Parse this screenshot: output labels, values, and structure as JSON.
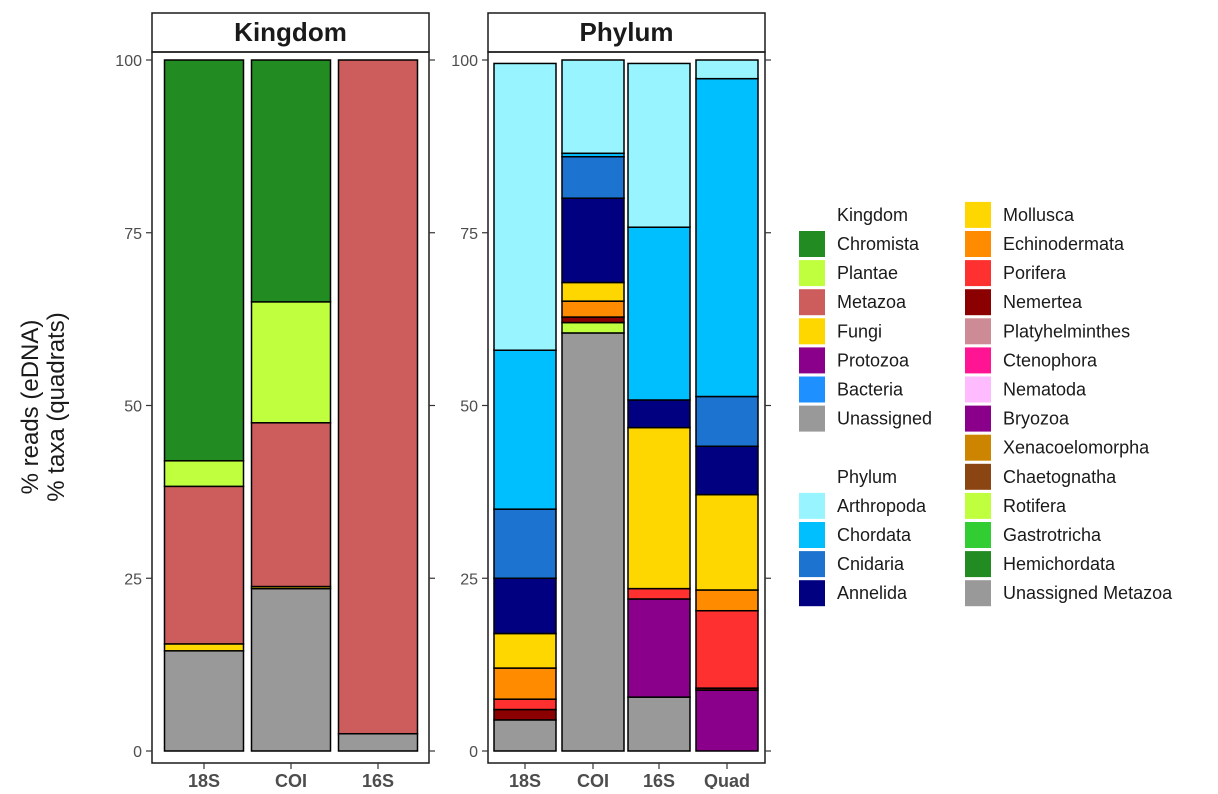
{
  "y_axis": {
    "title_line1": "% reads (eDNA)",
    "title_line2": "% taxa (quadrats)"
  },
  "colors": {
    "Chromista": "#228B22",
    "Plantae": "#C0FF3E",
    "Metazoa": "#CD5C5C",
    "Fungi": "#FFD700",
    "Protozoa": "#8B008B",
    "Bacteria": "#1E90FF",
    "Unassigned": "#999999",
    "Arthropoda": "#98F5FF",
    "Chordata": "#00BFFF",
    "Cnidaria": "#1C74D0",
    "Annelida": "#000080",
    "Mollusca": "#FFD700",
    "Echinodermata": "#FF8C00",
    "Porifera": "#FF3030",
    "Nemertea": "#8B0000",
    "Platyhelminthes": "#CD8C95",
    "Ctenophora": "#FF1493",
    "Nematoda": "#FFBBFF",
    "Bryozoa": "#8B008B",
    "Xenacoelomorpha": "#CD8500",
    "Chaetognatha": "#8B4513",
    "Rotifera": "#C0FF3E",
    "Gastrotricha": "#32CD32",
    "Hemichordata": "#228B22",
    "Unassigned Metazoa": "#999999"
  },
  "legend": {
    "kingdom_title": "Kingdom",
    "kingdom_items": [
      "Chromista",
      "Plantae",
      "Metazoa",
      "Fungi",
      "Protozoa",
      "Bacteria",
      "Unassigned"
    ],
    "phylum_title": "Phylum",
    "phylum_items_col1": [
      "Arthropoda",
      "Chordata",
      "Cnidaria",
      "Annelida"
    ],
    "phylum_items_col2": [
      "Mollusca",
      "Echinodermata",
      "Porifera",
      "Nemertea",
      "Platyhelminthes",
      "Ctenophora",
      "Nematoda",
      "Bryozoa",
      "Xenacoelomorpha",
      "Chaetognatha",
      "Rotifera",
      "Gastrotricha",
      "Hemichordata",
      "Unassigned Metazoa"
    ]
  },
  "chart_data": [
    {
      "type": "bar",
      "stacked": true,
      "facet": "Kingdom",
      "categories": [
        "18S",
        "COI",
        "16S"
      ],
      "ylim": [
        0,
        100
      ],
      "yticks": [
        0,
        25,
        50,
        75,
        100
      ],
      "series": [
        {
          "name": "Unassigned",
          "values": [
            14.5,
            23.5,
            2.5
          ]
        },
        {
          "name": "Bacteria",
          "values": [
            0,
            0,
            0
          ]
        },
        {
          "name": "Protozoa",
          "values": [
            0,
            0,
            0
          ]
        },
        {
          "name": "Fungi",
          "values": [
            1,
            0.3,
            0
          ]
        },
        {
          "name": "Metazoa",
          "values": [
            22.8,
            23.7,
            97.5
          ]
        },
        {
          "name": "Plantae",
          "values": [
            3.7,
            17.5,
            0
          ]
        },
        {
          "name": "Chromista",
          "values": [
            58,
            35,
            0
          ]
        }
      ]
    },
    {
      "type": "bar",
      "stacked": true,
      "facet": "Phylum",
      "categories": [
        "18S",
        "COI",
        "16S",
        "Quad"
      ],
      "ylim": [
        0,
        100
      ],
      "yticks": [
        0,
        25,
        50,
        75,
        100
      ],
      "series": [
        {
          "name": "Unassigned Metazoa",
          "values": [
            4.5,
            60.5,
            7.8,
            0
          ]
        },
        {
          "name": "Hemichordata",
          "values": [
            0,
            0,
            0,
            0
          ]
        },
        {
          "name": "Gastrotricha",
          "values": [
            0,
            0,
            0,
            0
          ]
        },
        {
          "name": "Rotifera",
          "values": [
            0,
            1.5,
            0,
            0
          ]
        },
        {
          "name": "Chaetognatha",
          "values": [
            0,
            0,
            0,
            0
          ]
        },
        {
          "name": "Xenacoelomorpha",
          "values": [
            0,
            0,
            0,
            0
          ]
        },
        {
          "name": "Bryozoa",
          "values": [
            0,
            0,
            14.2,
            8.8
          ]
        },
        {
          "name": "Nematoda",
          "values": [
            0,
            0,
            0,
            0
          ]
        },
        {
          "name": "Ctenophora",
          "values": [
            0,
            0,
            0,
            0
          ]
        },
        {
          "name": "Platyhelminthes",
          "values": [
            0,
            0,
            0,
            0
          ]
        },
        {
          "name": "Nemertea",
          "values": [
            1.5,
            0.8,
            0,
            0.3
          ]
        },
        {
          "name": "Porifera",
          "values": [
            1.5,
            0,
            1.5,
            11.2
          ]
        },
        {
          "name": "Echinodermata",
          "values": [
            4.5,
            2.3,
            0,
            3
          ]
        },
        {
          "name": "Mollusca",
          "values": [
            5,
            2.7,
            23.3,
            13.8
          ]
        },
        {
          "name": "Annelida",
          "values": [
            8,
            12.2,
            4,
            7
          ]
        },
        {
          "name": "Cnidaria",
          "values": [
            10,
            6,
            0,
            7.2
          ]
        },
        {
          "name": "Chordata",
          "values": [
            23,
            0.5,
            25,
            46
          ]
        },
        {
          "name": "Arthropoda",
          "values": [
            41.5,
            13.5,
            23.7,
            2.7
          ]
        }
      ]
    }
  ]
}
